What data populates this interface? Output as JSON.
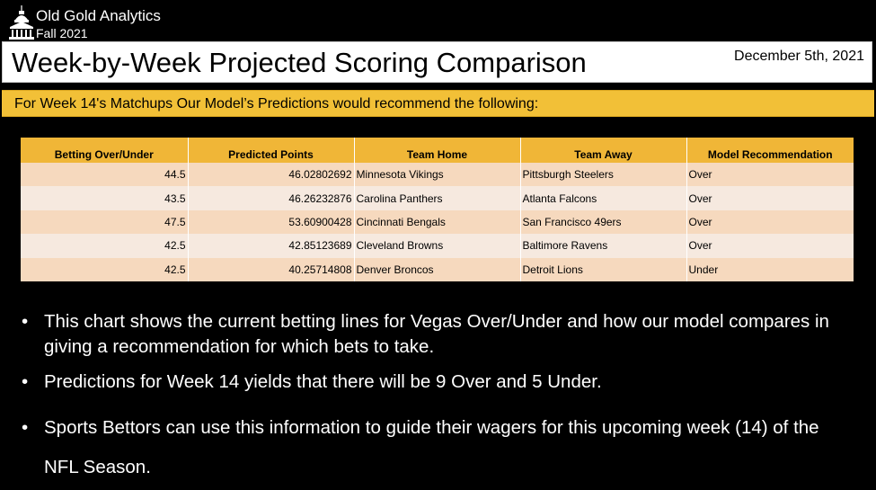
{
  "brand": {
    "logo_icon": "capitol-building-icon",
    "name": "Old Gold Analytics",
    "term": "Fall 2021"
  },
  "header": {
    "title": "Week-by-Week Projected Scoring Comparison",
    "date": "December 5th, 2021"
  },
  "banner": {
    "text": "For Week 14's Matchups Our Model’s Predictions would recommend the following:"
  },
  "table": {
    "columns": [
      "Betting Over/Under",
      "Predicted Points",
      "Team Home",
      "Team Away",
      "Model Recommendation"
    ],
    "rows": [
      [
        "44.5",
        "46.02802692",
        "Minnesota Vikings",
        "Pittsburgh Steelers",
        "Over"
      ],
      [
        "43.5",
        "46.26232876",
        "Carolina Panthers",
        "Atlanta Falcons",
        "Over"
      ],
      [
        "47.5",
        "53.60900428",
        "Cincinnati Bengals",
        "San Francisco 49ers",
        "Over"
      ],
      [
        "42.5",
        "42.85123689",
        "Cleveland Browns",
        "Baltimore Ravens",
        "Over"
      ],
      [
        "42.5",
        "40.25714808",
        "Denver Broncos",
        "Detroit Lions",
        "Under"
      ]
    ]
  },
  "notes": [
    "This chart shows the current betting lines for Vegas Over/Under and how our model compares in giving a recommendation for which bets to take.",
    "Predictions for Week 14 yields that there will be 9 Over and 5 Under.",
    "Sports Bettors can use this information to guide their wagers for this upcoming week (14) of the NFL Season."
  ],
  "colors": {
    "background": "#000000",
    "accent_gold": "#f2c037",
    "header_gold": "#f0b637",
    "row_odd": "#f6d9be",
    "row_even": "#f6e9df"
  }
}
